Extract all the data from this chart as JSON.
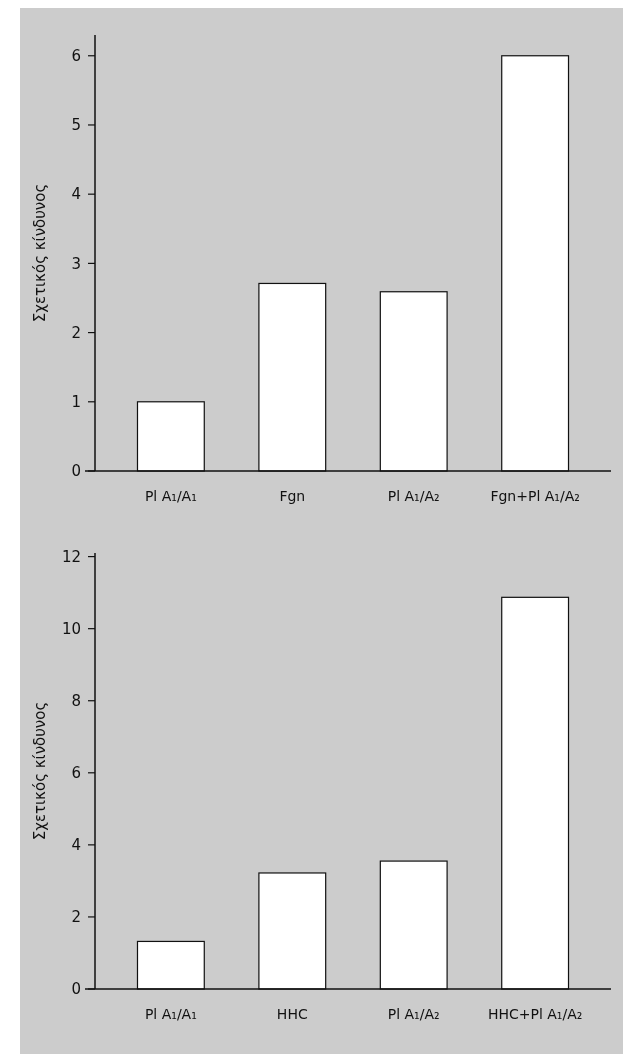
{
  "chart_data": [
    {
      "type": "bar",
      "ylabel": "Σχετικός κίνδυνος",
      "categories": [
        "Pl A₁/A₁",
        "Fgn",
        "Pl A₁/A₂",
        "Fgn+Pl A₁/A₂"
      ],
      "values": [
        1.0,
        2.71,
        2.59,
        6.0
      ],
      "color": "#ffffff",
      "ylim": [
        0,
        6.3
      ],
      "yticks": [
        0,
        1,
        2,
        3,
        4,
        5,
        6
      ],
      "grid": false
    },
    {
      "type": "bar",
      "ylabel": "Σχετικός κίνδυνος",
      "categories": [
        "Pl A₁/A₁",
        "HHC",
        "Pl A₁/A₂",
        "HHC+Pl A₁/A₂"
      ],
      "values": [
        1.32,
        3.22,
        3.55,
        10.87
      ],
      "color": "#ffffff",
      "ylim": [
        0,
        12.1
      ],
      "yticks": [
        0,
        2,
        4,
        6,
        8,
        10,
        12
      ],
      "grid": false
    }
  ]
}
